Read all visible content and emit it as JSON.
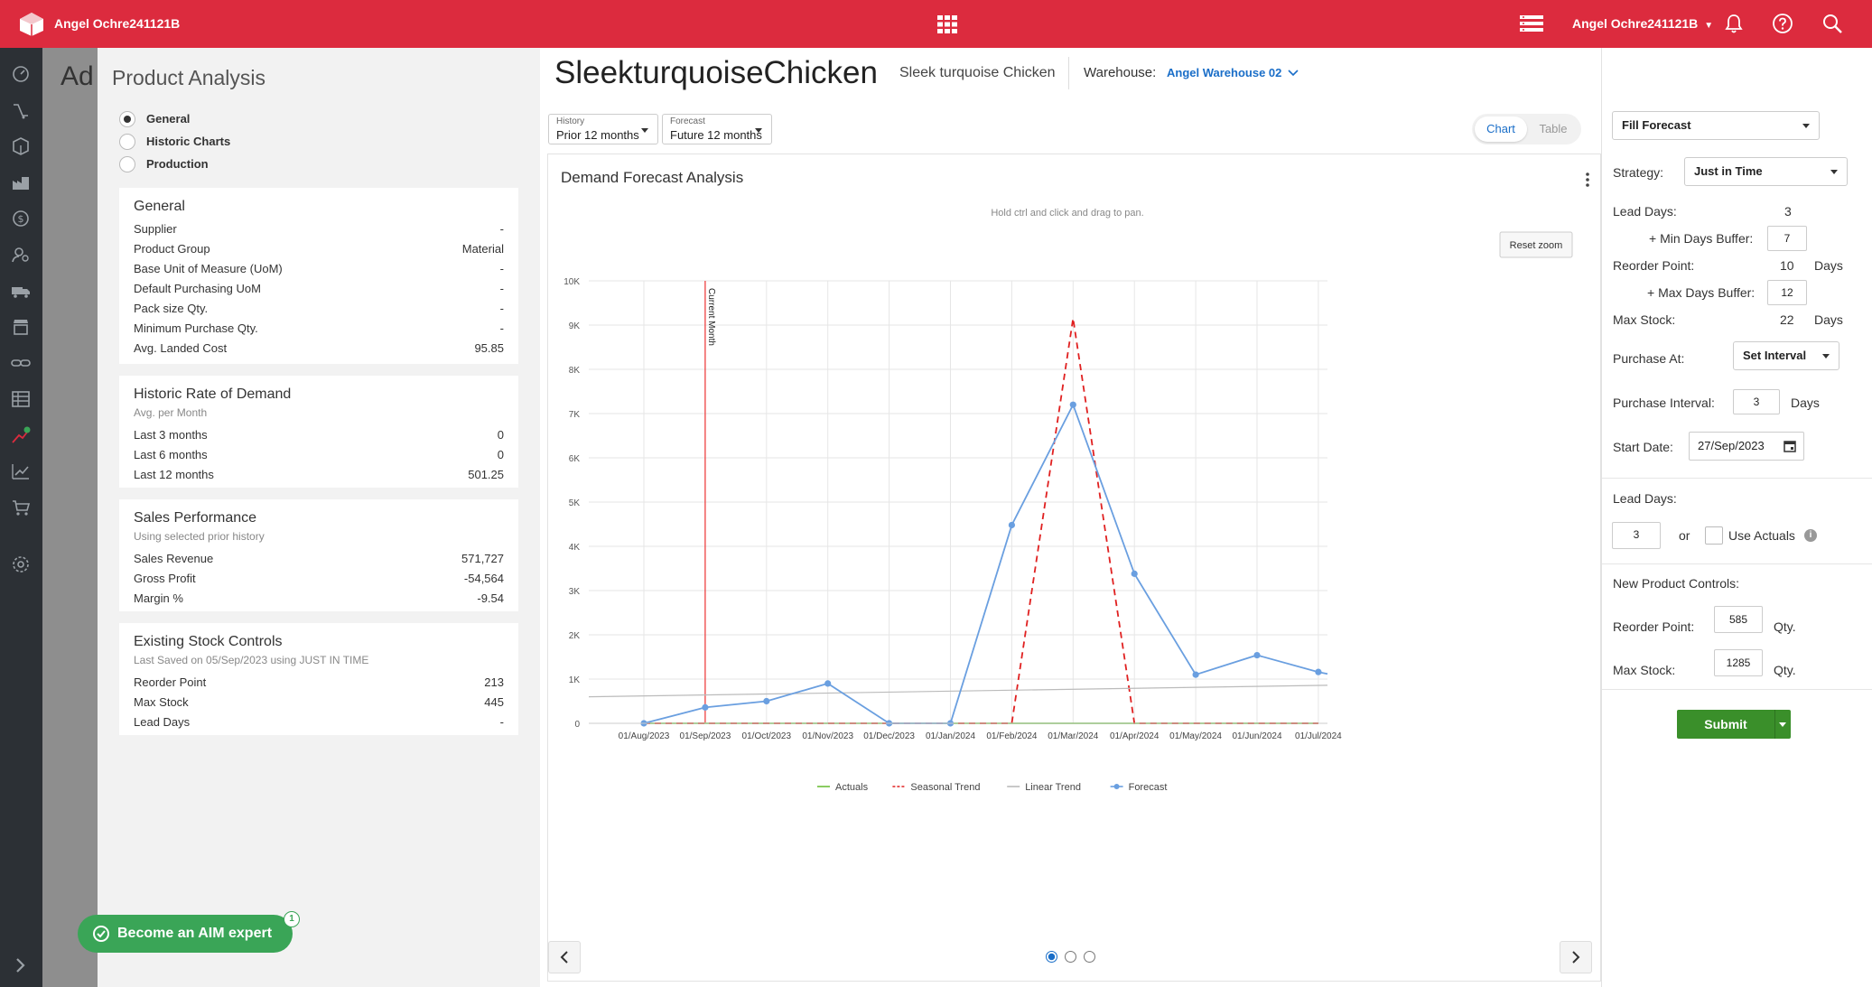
{
  "topbar": {
    "brand": "Angel Ochre241121B",
    "user": "Angel Ochre241121B",
    "accent": "#dc2b3e"
  },
  "background_page": {
    "heading": "Ad"
  },
  "left_panel": {
    "title": "Product Analysis",
    "radios": [
      {
        "label": "General",
        "selected": true
      },
      {
        "label": "Historic Charts",
        "selected": false
      },
      {
        "label": "Production",
        "selected": false
      }
    ],
    "general": {
      "title": "General",
      "rows": [
        {
          "label": "Supplier",
          "value": "-"
        },
        {
          "label": "Product Group",
          "value": "Material"
        },
        {
          "label": "Base Unit of Measure (UoM)",
          "value": "-"
        },
        {
          "label": "Default Purchasing UoM",
          "value": "-"
        },
        {
          "label": "Pack size Qty.",
          "value": "-"
        },
        {
          "label": "Minimum Purchase Qty.",
          "value": "-"
        },
        {
          "label": "Avg. Landed Cost",
          "value": "95.85"
        }
      ]
    },
    "demand": {
      "title": "Historic Rate of Demand",
      "subtitle": "Avg. per Month",
      "rows": [
        {
          "label": "Last 3 months",
          "value": "0"
        },
        {
          "label": "Last 6 months",
          "value": "0"
        },
        {
          "label": "Last 12 months",
          "value": "501.25"
        }
      ]
    },
    "sales": {
      "title": "Sales Performance",
      "subtitle": "Using selected prior history",
      "rows": [
        {
          "label": "Sales Revenue",
          "value": "571,727"
        },
        {
          "label": "Gross Profit",
          "value": "-54,564"
        },
        {
          "label": "Margin %",
          "value": "-9.54"
        }
      ]
    },
    "stock": {
      "title": "Existing Stock Controls",
      "subtitle": "Last Saved on 05/Sep/2023 using JUST IN TIME",
      "rows": [
        {
          "label": "Reorder Point",
          "value": "213"
        },
        {
          "label": "Max Stock",
          "value": "445"
        },
        {
          "label": "Lead Days",
          "value": "-"
        }
      ]
    },
    "expert_button": "Become an AIM expert",
    "expert_badge": "1"
  },
  "header": {
    "product_code": "SleekturquoiseChicken",
    "product_name": "Sleek turquoise Chicken",
    "warehouse_label": "Warehouse:",
    "warehouse_value": "Angel Warehouse 02"
  },
  "filters": {
    "history_label": "History",
    "history_value": "Prior 12 months",
    "forecast_label": "Forecast",
    "forecast_value": "Future 12 months"
  },
  "view_toggle": {
    "chart": "Chart",
    "table": "Table",
    "active": "Chart"
  },
  "chart_card": {
    "title": "Demand Forecast Analysis",
    "hint": "Hold ctrl and click and drag to pan.",
    "reset_zoom": "Reset zoom",
    "current_month_label": "Current Month",
    "pager_pages": 3,
    "pager_active": 1
  },
  "chart_data": {
    "type": "line",
    "title": "Demand Forecast Analysis",
    "y_ticks": [
      "0",
      "1K",
      "2K",
      "3K",
      "4K",
      "5K",
      "6K",
      "7K",
      "8K",
      "9K",
      "10K"
    ],
    "x_labels": [
      "01/Aug/2023",
      "01/Sep/2023",
      "01/Oct/2023",
      "01/Nov/2023",
      "01/Dec/2023",
      "01/Jan/2024",
      "01/Feb/2024",
      "01/Mar/2024",
      "01/Apr/2024",
      "01/May/2024",
      "01/Jun/2024",
      "01/Jul/2024"
    ],
    "ylim": [
      0,
      10000
    ],
    "current_month": "01/Sep/2023",
    "series": [
      {
        "name": "Actuals",
        "color": "#6cbf3a",
        "dash": false,
        "markers": false,
        "points": [
          [
            "01/Aug/2023",
            0
          ],
          [
            "01/Sep/2023",
            0
          ],
          [
            "01/Oct/2023",
            0
          ],
          [
            "01/Nov/2023",
            0
          ],
          [
            "01/Dec/2023",
            0
          ],
          [
            "01/Jan/2024",
            0
          ],
          [
            "01/Feb/2024",
            0
          ],
          [
            "01/Mar/2024",
            0
          ],
          [
            "01/Apr/2024",
            0
          ],
          [
            "01/May/2024",
            0
          ],
          [
            "01/Jun/2024",
            0
          ],
          [
            "01/Jul/2024",
            0
          ]
        ]
      },
      {
        "name": "Seasonal Trend",
        "color": "#e02020",
        "dash": true,
        "markers": false,
        "points": [
          [
            "01/Aug/2023",
            0
          ],
          [
            "01/Sep/2023",
            0
          ],
          [
            "01/Oct/2023",
            0
          ],
          [
            "01/Nov/2023",
            0
          ],
          [
            "01/Dec/2023",
            0
          ],
          [
            "01/Jan/2024",
            0
          ],
          [
            "01/Feb/2024",
            0
          ],
          [
            "01/Mar/2024",
            9150
          ],
          [
            "01/Apr/2024",
            0
          ],
          [
            "01/May/2024",
            0
          ],
          [
            "01/Jun/2024",
            0
          ],
          [
            "01/Jul/2024",
            0
          ]
        ]
      },
      {
        "name": "Linear Trend",
        "color": "#bbbbbb",
        "dash": false,
        "markers": false,
        "points": [
          [
            "01/Aug/2023",
            600
          ],
          [
            "01/Jul/2024",
            860
          ]
        ]
      },
      {
        "name": "Forecast",
        "color": "#6a9fe0",
        "dash": false,
        "markers": true,
        "points": [
          [
            "01/Aug/2023",
            0
          ],
          [
            "01/Sep/2023",
            360
          ],
          [
            "01/Oct/2023",
            500
          ],
          [
            "01/Nov/2023",
            900
          ],
          [
            "01/Dec/2023",
            0
          ],
          [
            "01/Jan/2024",
            0
          ],
          [
            "01/Feb/2024",
            4480
          ],
          [
            "01/Mar/2024",
            7200
          ],
          [
            "01/Apr/2024",
            3380
          ],
          [
            "01/May/2024",
            1100
          ],
          [
            "01/Jun/2024",
            1540
          ],
          [
            "01/Jul/2024",
            1160
          ]
        ]
      }
    ]
  },
  "right_panel": {
    "mode": "Fill Forecast",
    "strategy_label": "Strategy:",
    "strategy_value": "Just in Time",
    "lead_days_label": "Lead Days:",
    "lead_days_value": "3",
    "min_buffer_label": "+ Min Days Buffer:",
    "min_buffer_value": "7",
    "reorder_label": "Reorder Point:",
    "reorder_value": "10",
    "reorder_unit": "Days",
    "max_buffer_label": "+ Max Days Buffer:",
    "max_buffer_value": "12",
    "max_stock_label": "Max Stock:",
    "max_stock_value": "22",
    "max_stock_unit": "Days",
    "purchase_at_label": "Purchase At:",
    "purchase_at_value": "Set Interval",
    "interval_label": "Purchase Interval:",
    "interval_value": "3",
    "interval_unit": "Days",
    "start_label": "Start Date:",
    "start_value": "27/Sep/2023",
    "lead2_label": "Lead Days:",
    "lead2_value": "3",
    "or_text": "or",
    "use_actuals": "Use Actuals",
    "new_controls_label": "New Product Controls:",
    "np_reorder_label": "Reorder Point:",
    "np_reorder_value": "585",
    "np_reorder_unit": "Qty.",
    "np_max_label": "Max Stock:",
    "np_max_value": "1285",
    "np_max_unit": "Qty.",
    "submit": "Submit"
  }
}
